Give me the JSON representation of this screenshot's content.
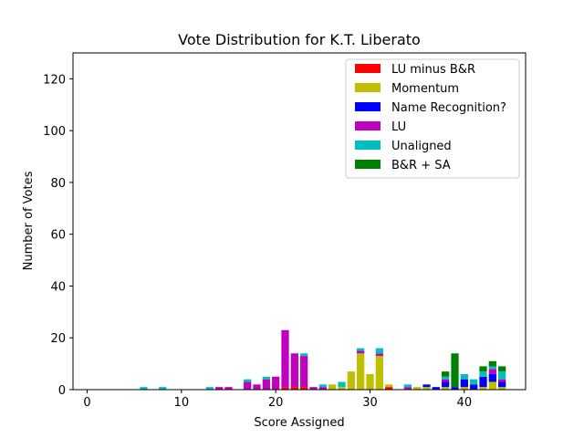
{
  "chart_data": {
    "type": "bar",
    "stacked": true,
    "title": "Vote Distribution for K.T. Liberato",
    "xlabel": "Score Assigned",
    "ylabel": "Number of Votes",
    "xlim": [
      -1.5,
      46.5
    ],
    "ylim": [
      0,
      130
    ],
    "xticks": [
      0,
      10,
      20,
      30,
      40
    ],
    "yticks": [
      0,
      20,
      40,
      60,
      80,
      100,
      120
    ],
    "legend_position": "top-right",
    "x": [
      0,
      1,
      2,
      3,
      4,
      5,
      6,
      7,
      8,
      9,
      10,
      11,
      12,
      13,
      14,
      15,
      16,
      17,
      18,
      19,
      20,
      21,
      22,
      23,
      24,
      25,
      26,
      27,
      28,
      29,
      30,
      31,
      32,
      33,
      34,
      35,
      36,
      37,
      38,
      39,
      40,
      41,
      42,
      43,
      44
    ],
    "series": [
      {
        "name": "LU minus B&R",
        "color": "#ff0000",
        "values": [
          0,
          0,
          0,
          0,
          0,
          0,
          0,
          0,
          0,
          0,
          0,
          0,
          0,
          0,
          0,
          0,
          0,
          0,
          0,
          0,
          0,
          1,
          1,
          1,
          0,
          0,
          0,
          0,
          0,
          0,
          0,
          0,
          1,
          0,
          0,
          0,
          0,
          0,
          0,
          0,
          0,
          0,
          0,
          0,
          0
        ]
      },
      {
        "name": "Momentum",
        "color": "#bfbf00",
        "values": [
          0,
          0,
          0,
          0,
          0,
          0,
          0,
          0,
          0,
          0,
          0,
          0,
          0,
          0,
          0,
          0,
          0,
          0,
          0,
          0,
          0,
          0,
          0,
          0,
          0,
          0,
          2,
          1,
          7,
          14,
          6,
          13,
          1,
          0,
          0,
          1,
          1,
          0,
          1,
          0,
          1,
          0,
          1,
          3,
          1
        ]
      },
      {
        "name": "Name Recognition?",
        "color": "#0000ff",
        "values": [
          0,
          0,
          0,
          0,
          0,
          0,
          0,
          0,
          0,
          0,
          0,
          0,
          0,
          0,
          0,
          0,
          0,
          0,
          0,
          0,
          0,
          0,
          0,
          0,
          0,
          0,
          0,
          0,
          0,
          0,
          0,
          0,
          0,
          0,
          0,
          0,
          1,
          1,
          2,
          1,
          3,
          2,
          4,
          3,
          2
        ]
      },
      {
        "name": "LU",
        "color": "#bf00bf",
        "values": [
          0,
          0,
          0,
          0,
          0,
          0,
          0,
          0,
          0,
          0,
          0,
          0,
          0,
          0,
          1,
          1,
          0,
          3,
          2,
          4,
          5,
          22,
          13,
          12,
          1,
          1,
          0,
          0,
          0,
          1,
          0,
          1,
          0,
          0,
          1,
          0,
          0,
          0,
          1,
          0,
          0,
          0,
          0,
          2,
          1
        ]
      },
      {
        "name": "Unaligned",
        "color": "#00bfbf",
        "values": [
          0,
          0,
          0,
          0,
          0,
          0,
          1,
          0,
          1,
          0,
          0,
          0,
          0,
          1,
          0,
          0,
          0,
          1,
          0,
          1,
          0,
          0,
          0,
          1,
          0,
          1,
          0,
          2,
          0,
          1,
          0,
          2,
          0,
          0,
          1,
          0,
          0,
          0,
          1,
          0,
          2,
          2,
          2,
          1,
          3
        ]
      },
      {
        "name": "B&R + SA",
        "color": "#008000",
        "values": [
          0,
          0,
          0,
          0,
          0,
          0,
          0,
          0,
          0,
          0,
          0,
          0,
          0,
          0,
          0,
          0,
          0,
          0,
          0,
          0,
          0,
          0,
          0,
          0,
          0,
          0,
          0,
          0,
          0,
          0,
          0,
          0,
          0,
          0,
          0,
          0,
          0,
          0,
          2,
          13,
          0,
          0,
          2,
          2,
          2
        ]
      }
    ]
  }
}
